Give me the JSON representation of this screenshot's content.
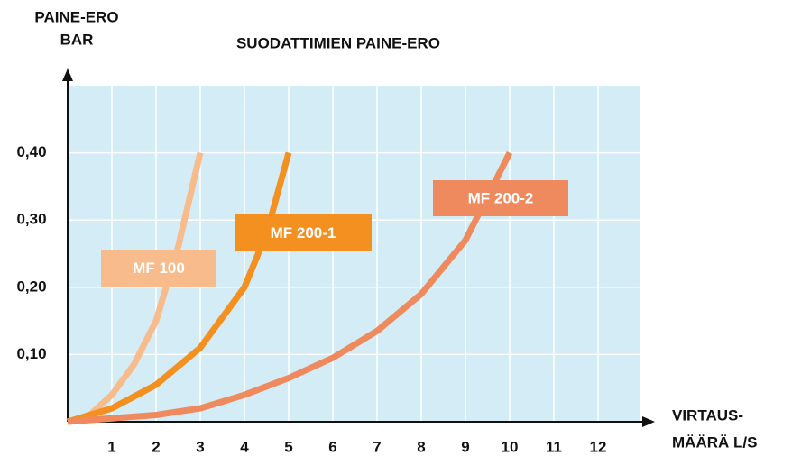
{
  "chart_data": {
    "type": "line",
    "title": "SUODATTIMIEN PAINE-ERO",
    "ylabel": [
      "PAINE-ERO",
      "BAR"
    ],
    "xlabel": [
      "VIRTAUS-",
      "MÄÄRÄ L/S"
    ],
    "xlim": [
      0,
      12.96
    ],
    "ylim": [
      0,
      0.5
    ],
    "xticks": [
      1,
      2,
      3,
      4,
      5,
      6,
      7,
      8,
      9,
      10,
      11,
      12
    ],
    "yticks": [
      {
        "value": 0.1,
        "label": "0,10"
      },
      {
        "value": 0.2,
        "label": "0,20"
      },
      {
        "value": 0.3,
        "label": "0,30"
      },
      {
        "value": 0.4,
        "label": "0,40"
      }
    ],
    "grid": true,
    "background": "#d3ecf6",
    "series": [
      {
        "name": "MF 100",
        "color": "#f8bb8c",
        "x": [
          0,
          0.5,
          1,
          1.5,
          2,
          2.5,
          3
        ],
        "values": [
          0,
          0.01,
          0.04,
          0.085,
          0.15,
          0.26,
          0.4
        ]
      },
      {
        "name": "MF 200-1",
        "color": "#f39020",
        "x": [
          0,
          1,
          2,
          3,
          4,
          4.5,
          5
        ],
        "values": [
          0,
          0.02,
          0.055,
          0.11,
          0.2,
          0.28,
          0.4
        ]
      },
      {
        "name": "MF 200-2",
        "color": "#ef8a5e",
        "x": [
          0,
          2,
          3,
          4,
          5,
          6,
          7,
          8,
          9,
          10
        ],
        "values": [
          0,
          0.01,
          0.02,
          0.04,
          0.065,
          0.095,
          0.135,
          0.19,
          0.27,
          0.4
        ]
      }
    ]
  }
}
